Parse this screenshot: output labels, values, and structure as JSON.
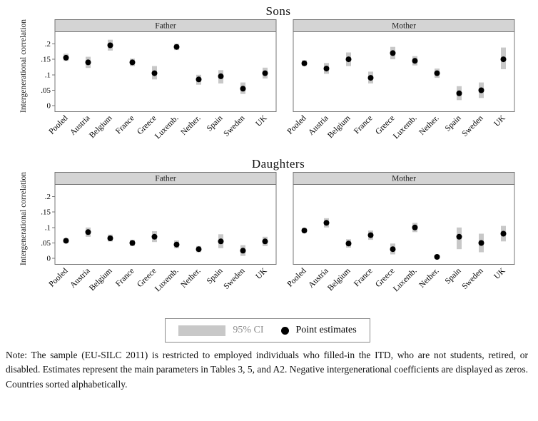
{
  "chart_data": {
    "type": "scatter",
    "ylabel": "Intergenerational correlation",
    "ylim": [
      -0.018,
      0.24
    ],
    "yticks": [
      0,
      0.05,
      0.1,
      0.15,
      0.2
    ],
    "ytick_labels": [
      "0",
      ".05",
      ".1",
      ".15",
      ".2"
    ],
    "grid": false,
    "legend_position": "bottom",
    "categories": [
      "Pooled",
      "Austria",
      "Belgium",
      "France",
      "Greece",
      "Luxemb.",
      "Nether.",
      "Spain",
      "Sweden",
      "UK"
    ],
    "figures": [
      {
        "title": "Sons",
        "panels": [
          {
            "header": "Father",
            "values": [
              0.155,
              0.14,
              0.195,
              0.14,
              0.105,
              0.19,
              0.085,
              0.095,
              0.055,
              0.105
            ],
            "ci_low": [
              0.145,
              0.122,
              0.178,
              0.128,
              0.085,
              0.18,
              0.068,
              0.072,
              0.038,
              0.088
            ],
            "ci_high": [
              0.168,
              0.158,
              0.213,
              0.152,
              0.128,
              0.2,
              0.1,
              0.115,
              0.075,
              0.123
            ]
          },
          {
            "header": "Mother",
            "values": [
              0.137,
              0.12,
              0.15,
              0.09,
              0.17,
              0.145,
              0.105,
              0.04,
              0.05,
              0.15
            ],
            "ci_low": [
              0.128,
              0.103,
              0.128,
              0.072,
              0.15,
              0.13,
              0.09,
              0.018,
              0.025,
              0.118
            ],
            "ci_high": [
              0.147,
              0.138,
              0.172,
              0.11,
              0.19,
              0.16,
              0.12,
              0.063,
              0.075,
              0.188
            ]
          }
        ]
      },
      {
        "title": "Daughters",
        "panels": [
          {
            "header": "Father",
            "values": [
              0.057,
              0.085,
              0.065,
              0.05,
              0.07,
              0.045,
              0.03,
              0.055,
              0.025,
              0.055
            ],
            "ci_low": [
              0.05,
              0.07,
              0.055,
              0.04,
              0.053,
              0.033,
              0.02,
              0.033,
              0.008,
              0.04
            ],
            "ci_high": [
              0.065,
              0.1,
              0.077,
              0.06,
              0.088,
              0.058,
              0.04,
              0.078,
              0.043,
              0.07
            ]
          },
          {
            "header": "Mother",
            "values": [
              0.09,
              0.115,
              0.048,
              0.075,
              0.03,
              0.1,
              0.005,
              0.07,
              0.05,
              0.08
            ],
            "ci_low": [
              0.082,
              0.1,
              0.035,
              0.06,
              0.013,
              0.085,
              0.0,
              0.03,
              0.02,
              0.055
            ],
            "ci_high": [
              0.098,
              0.13,
              0.062,
              0.09,
              0.048,
              0.115,
              0.012,
              0.1,
              0.08,
              0.105
            ]
          }
        ]
      }
    ]
  },
  "legend": {
    "ci_label": "95% CI",
    "point_label": "Point estimates"
  },
  "note": {
    "text": "Note: The sample (EU-SILC 2011) is restricted to employed individuals who filled-in the ITD, who are not students, retired, or disabled. Estimates represent the main parameters in Tables 3, 5, and A2. Negative intergenerational coefficients are displayed as zeros. Countries sorted alphabetically."
  },
  "colors": {
    "ci": "#c8c8c8",
    "point": "#000000",
    "header_bg": "#d4d4d4",
    "border": "#777777"
  }
}
